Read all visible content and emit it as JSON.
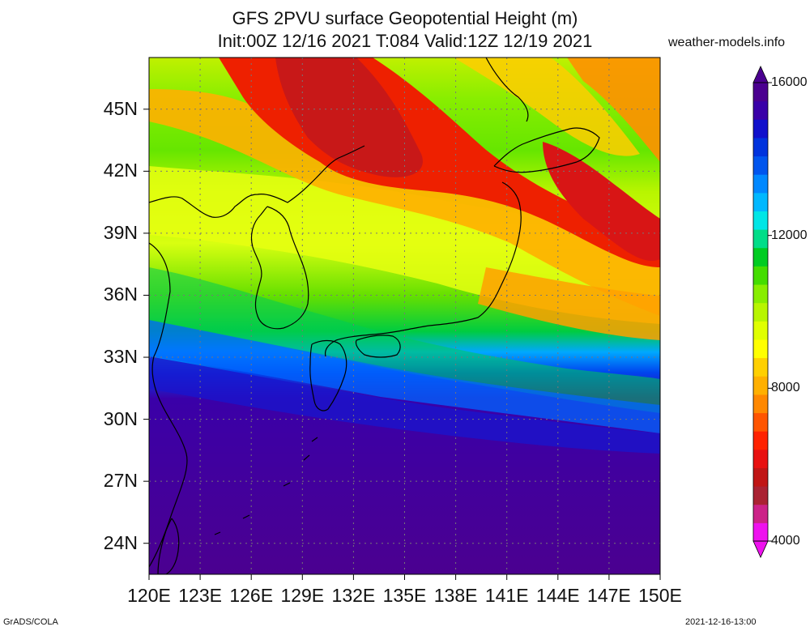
{
  "title": "GFS 2PVU surface Geopotential Height (m)",
  "subtitle": "Init:00Z 12/16 2021 T:084 Valid:12Z 12/19 2021",
  "brand": "weather-models.info",
  "footer_left": "GrADS/COLA",
  "footer_right": "2021-12-16-13:00",
  "map": {
    "lon_min": 120,
    "lon_max": 150,
    "lat_min": 22.5,
    "lat_max": 47.5,
    "lat_labels": [
      {
        "value": 45,
        "text": "45N"
      },
      {
        "value": 42,
        "text": "42N"
      },
      {
        "value": 39,
        "text": "39N"
      },
      {
        "value": 36,
        "text": "36N"
      },
      {
        "value": 33,
        "text": "33N"
      },
      {
        "value": 30,
        "text": "30N"
      },
      {
        "value": 27,
        "text": "27N"
      },
      {
        "value": 24,
        "text": "24N"
      }
    ],
    "lon_labels": [
      {
        "value": 120,
        "text": "120E"
      },
      {
        "value": 123,
        "text": "123E"
      },
      {
        "value": 126,
        "text": "126E"
      },
      {
        "value": 129,
        "text": "129E"
      },
      {
        "value": 132,
        "text": "132E"
      },
      {
        "value": 135,
        "text": "135E"
      },
      {
        "value": 138,
        "text": "138E"
      },
      {
        "value": 141,
        "text": "141E"
      },
      {
        "value": 144,
        "text": "144E"
      },
      {
        "value": 147,
        "text": "147E"
      },
      {
        "value": 150,
        "text": "150E"
      }
    ]
  },
  "colorbar": {
    "min": 4000,
    "max": 16000,
    "labels": [
      {
        "value": 16000,
        "text": "16000"
      },
      {
        "value": 12000,
        "text": "12000"
      },
      {
        "value": 8000,
        "text": "8000"
      },
      {
        "value": 4000,
        "text": "4000"
      }
    ],
    "colors": [
      "#ee11ee",
      "#cc2288",
      "#aa2233",
      "#c01515",
      "#e81010",
      "#ff2200",
      "#ff5500",
      "#ff8800",
      "#ffb000",
      "#ffd000",
      "#ffff00",
      "#e0ff00",
      "#b8f500",
      "#88ee00",
      "#44dd00",
      "#00cc22",
      "#00dd88",
      "#00e6e6",
      "#00b8ff",
      "#0088ff",
      "#0055ee",
      "#0033dd",
      "#1010cc",
      "#3a00a8",
      "#4b0090"
    ]
  }
}
